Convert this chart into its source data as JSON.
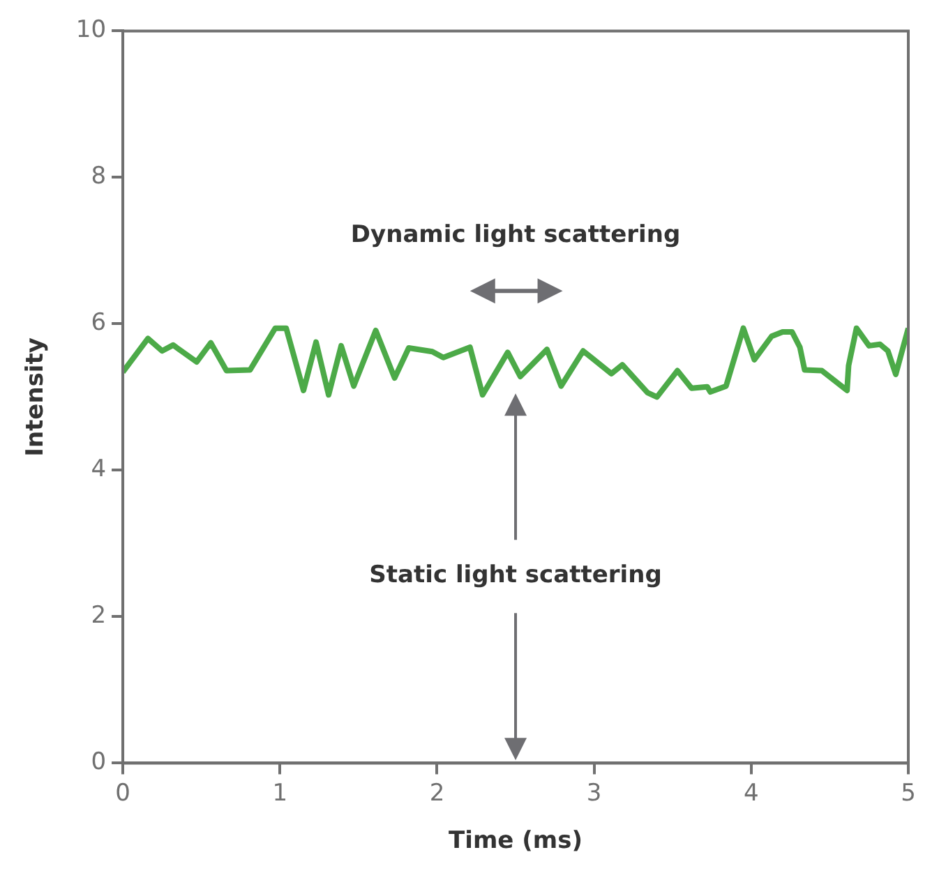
{
  "chart_data": {
    "type": "line",
    "xlabel": "Time (ms)",
    "ylabel": "Intensity",
    "annotations": [
      "Dynamic light scattering",
      "Static light scattering"
    ],
    "xlim": [
      0,
      5
    ],
    "xticks": [
      0,
      1,
      2,
      3,
      4,
      5
    ],
    "ylim": [
      0,
      10
    ],
    "yticks": [
      0,
      2,
      4,
      6,
      8,
      10
    ],
    "grid": false,
    "legend": false,
    "marker": "none",
    "line_style": "solid",
    "series": [
      {
        "color": "#4caa48",
        "x": [
          0,
          0.16,
          0.25,
          0.32,
          0.47,
          0.56,
          0.66,
          0.81,
          0.97,
          1.04,
          1.15,
          1.23,
          1.31,
          1.39,
          1.47,
          1.61,
          1.73,
          1.82,
          1.97,
          2.04,
          2.21,
          2.29,
          2.45,
          2.53,
          2.7,
          2.79,
          2.93,
          3.11,
          3.18,
          3.34,
          3.4,
          3.53,
          3.62,
          3.72,
          3.74,
          3.84,
          3.95,
          4.02,
          4.13,
          4.2,
          4.26,
          4.31,
          4.34,
          4.45,
          4.61,
          4.62,
          4.67,
          4.75,
          4.82,
          4.87,
          4.92,
          5
        ],
        "values": [
          5.34,
          5.8,
          5.63,
          5.71,
          5.48,
          5.74,
          5.36,
          5.37,
          5.94,
          5.94,
          5.09,
          5.75,
          5.03,
          5.7,
          5.15,
          5.91,
          5.26,
          5.67,
          5.62,
          5.54,
          5.68,
          5.03,
          5.61,
          5.28,
          5.65,
          5.15,
          5.63,
          5.32,
          5.44,
          5.06,
          5.0,
          5.36,
          5.12,
          5.14,
          5.07,
          5.15,
          5.94,
          5.51,
          5.83,
          5.89,
          5.89,
          5.68,
          5.37,
          5.36,
          5.09,
          5.43,
          5.94,
          5.7,
          5.72,
          5.63,
          5.31,
          5.94
        ]
      }
    ]
  }
}
